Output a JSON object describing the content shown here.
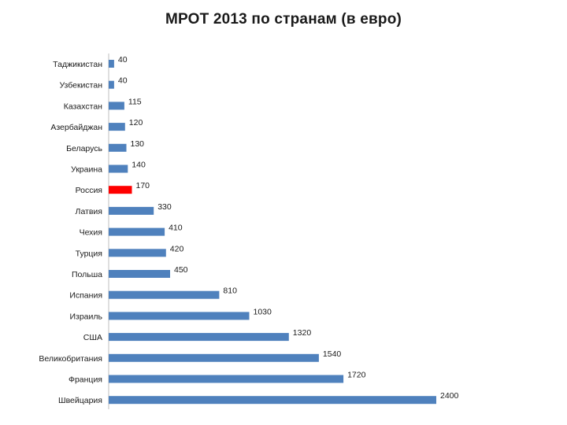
{
  "chart_data": {
    "type": "bar",
    "orientation": "horizontal",
    "title": "МРОТ 2013 по странам (в евро)",
    "xlabel": "",
    "ylabel": "",
    "xlim": [
      0,
      2400
    ],
    "grid": false,
    "legend": "none",
    "categories": [
      "Таджикистан",
      "Узбекистан",
      "Казахстан",
      "Азербайджан",
      "Беларусь",
      "Украина",
      "Россия",
      "Латвия",
      "Чехия",
      "Турция",
      "Польша",
      "Испания",
      "Израиль",
      "США",
      "Великобритания",
      "Франция",
      "Швейцария"
    ],
    "values": [
      40,
      40,
      115,
      120,
      130,
      140,
      170,
      330,
      410,
      420,
      450,
      810,
      1030,
      1320,
      1540,
      1720,
      2400
    ],
    "data_labels": [
      "40",
      "40",
      "115",
      "120",
      "130",
      "140",
      "170",
      "330",
      "410",
      "420",
      "450",
      "810",
      "1030",
      "1320",
      "1540",
      "1720",
      "2400"
    ],
    "highlight_category": "Россия"
  },
  "colors": {
    "bar": "#4f81bd",
    "highlight": "#ff0000",
    "axis": "#bfbfbf",
    "text": "#1a1a1a"
  }
}
